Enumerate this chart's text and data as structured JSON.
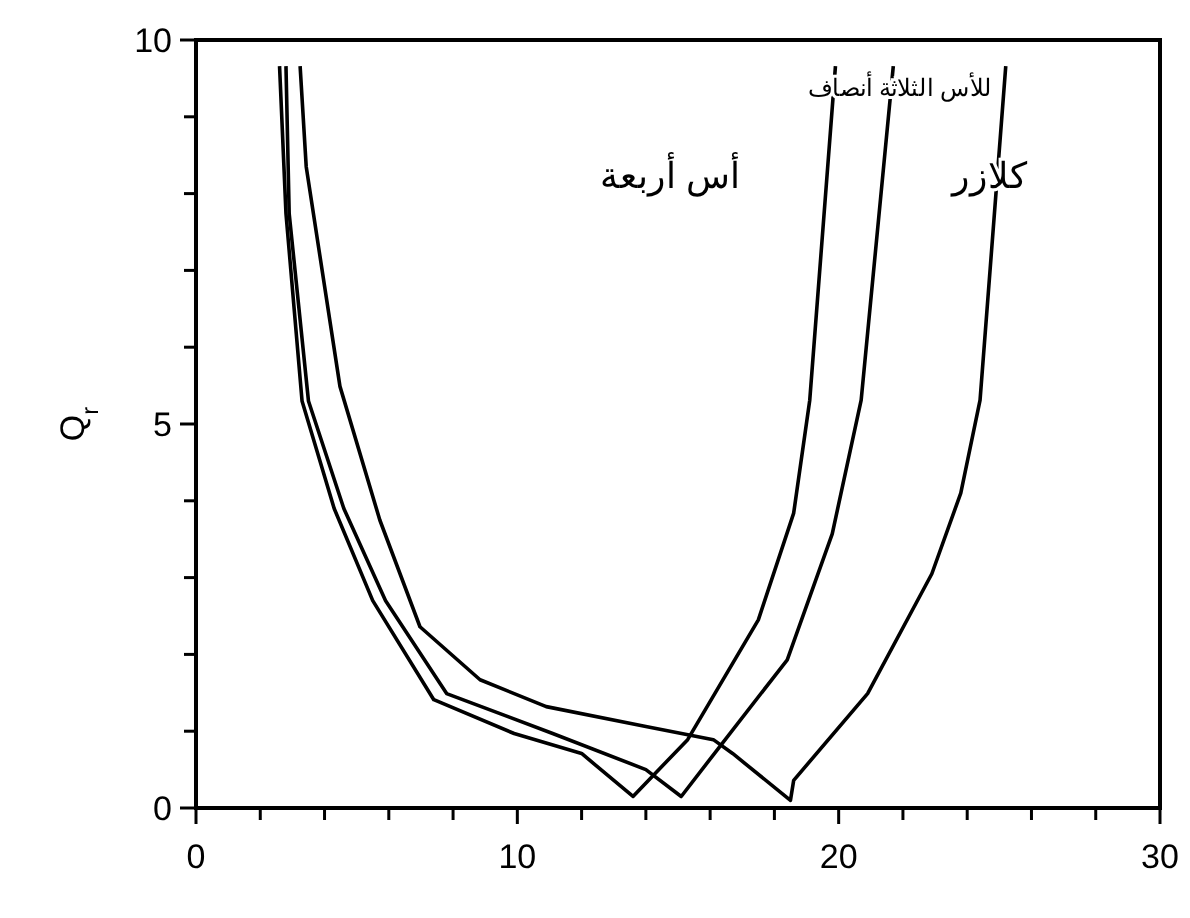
{
  "chart_data": {
    "type": "line",
    "ylabel": "Q$_{r}$",
    "xlim": [
      0,
      30
    ],
    "xticks": [
      0,
      {
        "value": 2,
        "label": null
      },
      {
        "value": 4,
        "label": null
      },
      {
        "value": 6,
        "label": null
      },
      {
        "value": 8,
        "label": null
      },
      10,
      {
        "value": 12,
        "label": null
      },
      {
        "value": 14,
        "label": null
      },
      {
        "value": 16,
        "label": null
      },
      {
        "value": 18,
        "label": null
      },
      20,
      {
        "value": 22,
        "label": null
      },
      {
        "value": 24,
        "label": null
      },
      {
        "value": 26,
        "label": null
      },
      {
        "value": 28,
        "label": null
      },
      30
    ],
    "ylim": [
      0,
      10
    ],
    "yticks": [
      0,
      {
        "value": 1,
        "label": null
      },
      {
        "value": 2,
        "label": null
      },
      {
        "value": 3,
        "label": null
      },
      {
        "value": 4,
        "label": null
      },
      5,
      {
        "value": 6,
        "label": null
      },
      {
        "value": 7,
        "label": null
      },
      {
        "value": 8,
        "label": null
      },
      {
        "value": 9,
        "label": null
      },
      10
    ],
    "grid": false,
    "marker": "none",
    "line_style": "solid",
    "series": [
      {
        "color": "#000000",
        "x": [
          2.6,
          2.8,
          3.3,
          4.3,
          5.5,
          7.4,
          9.9,
          12,
          13.6,
          15.3,
          17.5,
          18.6,
          19.1,
          19.9
        ],
        "values": [
          9.66,
          7.74,
          5.3,
          3.9,
          2.7,
          1.41,
          0.97,
          0.71,
          0.15,
          0.89,
          2.45,
          3.84,
          5.31,
          9.66
        ]
      },
      {
        "color": "#000000",
        "x": [
          2.8,
          2.9,
          3.5,
          4.6,
          5.9,
          7.8,
          11.1,
          14,
          15.1,
          16.3,
          18.4,
          19.8,
          20.7,
          21.7
        ],
        "values": [
          9.66,
          7.74,
          5.3,
          3.9,
          2.7,
          1.49,
          0.97,
          0.5,
          0.15,
          0.8,
          1.93,
          3.57,
          5.31,
          9.66
        ]
      },
      {
        "color": "#000000",
        "x": [
          3.24,
          3.43,
          4.48,
          5.72,
          6.97,
          8.84,
          10.9,
          14,
          16.1,
          16.7,
          18.5,
          18.6,
          20.9,
          22.9,
          23.8,
          24.4,
          25.2
        ],
        "values": [
          9.66,
          8.35,
          5.49,
          3.75,
          2.36,
          1.67,
          1.32,
          1.06,
          0.89,
          0.71,
          0.1,
          0.36,
          1.49,
          3.05,
          4.1,
          5.31,
          9.66
        ]
      }
    ],
    "annotations": [
      "للأس الثلاثة أنصاف",
      "أس أربعة",
      "كلازر"
    ]
  }
}
